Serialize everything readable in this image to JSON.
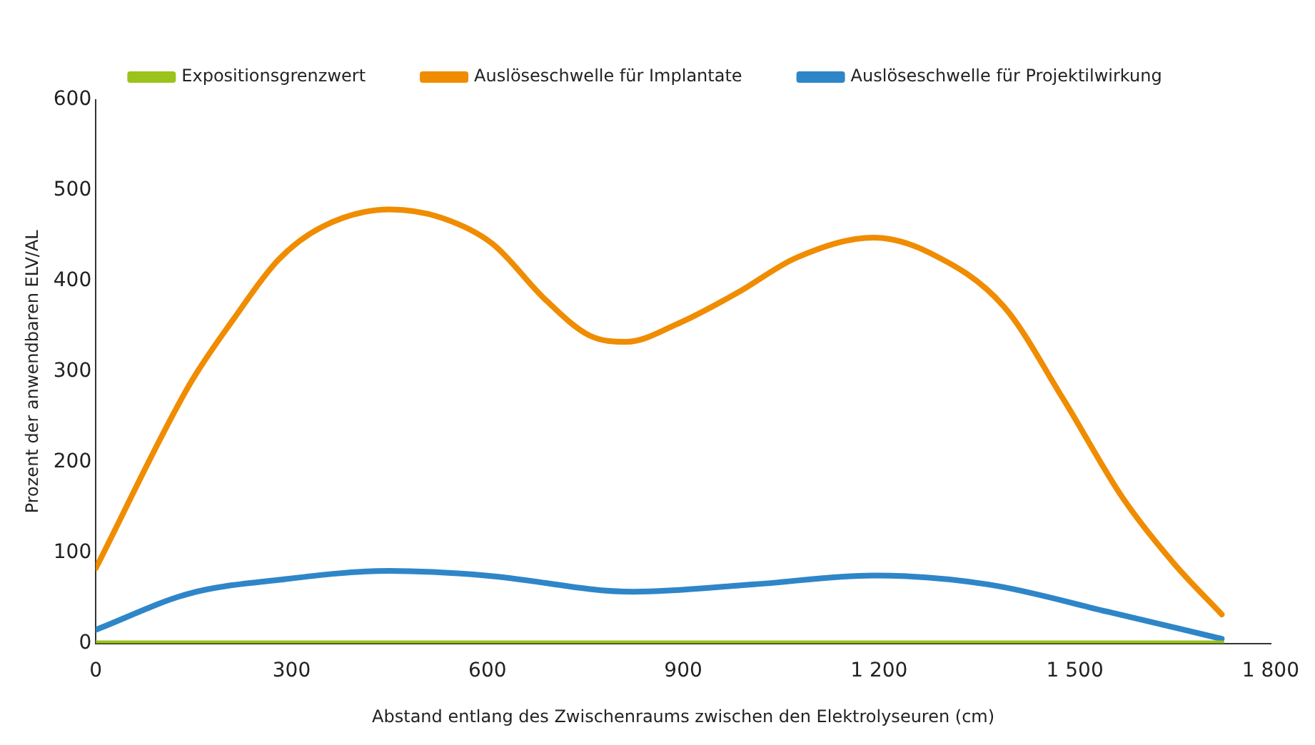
{
  "chart_data": {
    "type": "line",
    "xlabel": "Abstand entlang des Zwischenraums zwischen den Elektrolyseuren (cm)",
    "ylabel": "Prozent der anwendbaren ELV/AL",
    "xlim": [
      0,
      1800
    ],
    "xticks": [
      0,
      300,
      600,
      900,
      {
        "value": 1200,
        "label": "1 200"
      },
      {
        "value": 1500,
        "label": "1 500"
      },
      {
        "value": 1800,
        "label": "1 800"
      }
    ],
    "ylim": [
      0,
      600
    ],
    "yticks": [
      0,
      100,
      200,
      300,
      400,
      500,
      600
    ],
    "grid": false,
    "legend": "top",
    "marker": "none",
    "line_style": "solid",
    "series": [
      {
        "name": "Expositionsgrenzwert",
        "color": "#9bc31c",
        "x": [
          0,
          1725
        ],
        "values": [
          0,
          0
        ]
      },
      {
        "name": "Auslöseschwelle für Implantate",
        "color": "#f08c00",
        "x": [
          0,
          143,
          211,
          279,
          347,
          450,
          529,
          608,
          688,
          756,
          813,
          892,
          983,
          1074,
          1192,
          1278,
          1391,
          1482,
          1573,
          1652,
          1725
        ],
        "values": [
          83,
          285,
          358,
          423,
          460,
          479,
          470,
          441,
          380,
          340,
          333,
          353,
          387,
          426,
          448,
          431,
          372,
          270,
          161,
          88,
          32
        ]
      },
      {
        "name": "Auslöseschwelle für Projektilwirkung",
        "color": "#2e86c8",
        "x": [
          0,
          143,
          279,
          450,
          597,
          824,
          1006,
          1192,
          1368,
          1550,
          1725
        ],
        "values": [
          15,
          55,
          70,
          80,
          75,
          57,
          65,
          75,
          65,
          35,
          5
        ]
      }
    ]
  }
}
